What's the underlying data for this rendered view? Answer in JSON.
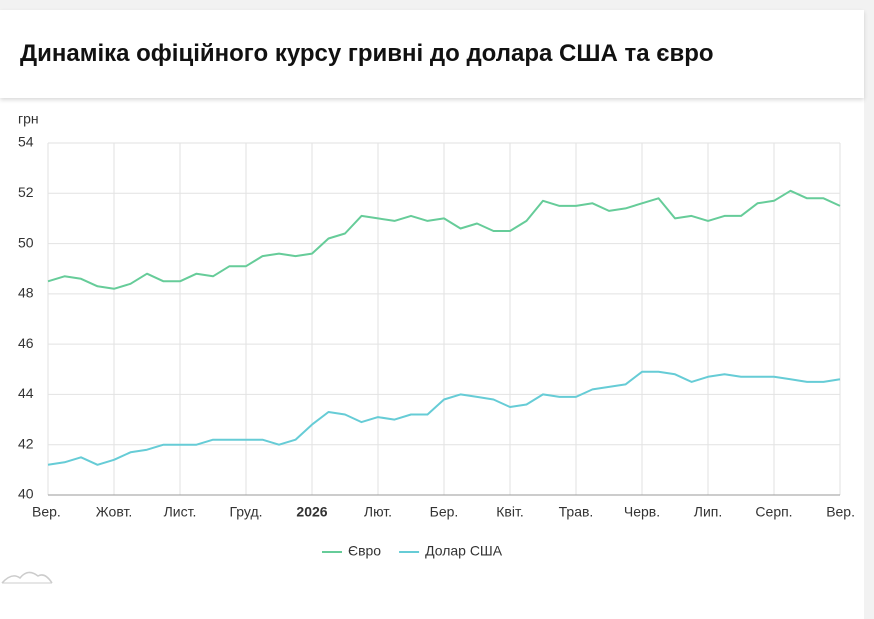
{
  "chart_data": {
    "type": "line",
    "title": "Динаміка офіційного курсу гривні до долара США та євро",
    "y_label": "грн",
    "xlim": [
      0,
      12
    ],
    "xticks": [
      {
        "value": 0,
        "label": "Вер."
      },
      {
        "value": 1,
        "label": "Жовт."
      },
      {
        "value": 2,
        "label": "Лист."
      },
      {
        "value": 3,
        "label": "Груд."
      },
      {
        "value": 4,
        "label": "2026"
      },
      {
        "value": 5,
        "label": "Лют."
      },
      {
        "value": 6,
        "label": "Бер."
      },
      {
        "value": 7,
        "label": "Квіт."
      },
      {
        "value": 8,
        "label": "Трав."
      },
      {
        "value": 9,
        "label": "Черв."
      },
      {
        "value": 10,
        "label": "Лип."
      },
      {
        "value": 11,
        "label": "Серп."
      },
      {
        "value": 12,
        "label": "Вер."
      }
    ],
    "ylim": [
      40,
      54
    ],
    "yticks": [
      40,
      42,
      44,
      46,
      48,
      50,
      52,
      54
    ],
    "grid": true,
    "legend": "bottom",
    "series": [
      {
        "name": "Євро",
        "color": "#66cc99",
        "values": [
          48.5,
          48.7,
          48.6,
          48.3,
          48.2,
          48.4,
          48.8,
          48.5,
          48.5,
          48.8,
          48.7,
          49.1,
          49.1,
          49.5,
          49.6,
          49.5,
          49.6,
          50.2,
          50.4,
          51.1,
          51.0,
          50.9,
          51.1,
          50.9,
          51.0,
          50.6,
          50.8,
          50.5,
          50.5,
          50.9,
          51.7,
          51.5,
          51.5,
          51.6,
          51.3,
          51.4,
          51.6,
          51.8,
          51.0,
          51.1,
          50.9,
          51.1,
          51.1,
          51.6,
          51.7,
          52.1,
          51.8,
          51.8,
          51.5
        ]
      },
      {
        "name": "Долар США",
        "color": "#66ccd6",
        "values": [
          41.2,
          41.3,
          41.5,
          41.2,
          41.4,
          41.7,
          41.8,
          42.0,
          42.0,
          42.0,
          42.2,
          42.2,
          42.2,
          42.2,
          42.0,
          42.2,
          42.8,
          43.3,
          43.2,
          42.9,
          43.1,
          43.0,
          43.2,
          43.2,
          43.8,
          44.0,
          43.9,
          43.8,
          43.5,
          43.6,
          44.0,
          43.9,
          43.9,
          44.2,
          44.3,
          44.4,
          44.9,
          44.9,
          44.8,
          44.5,
          44.7,
          44.8,
          44.7,
          44.7,
          44.7,
          44.6,
          44.5,
          44.5,
          44.6
        ]
      }
    ]
  }
}
